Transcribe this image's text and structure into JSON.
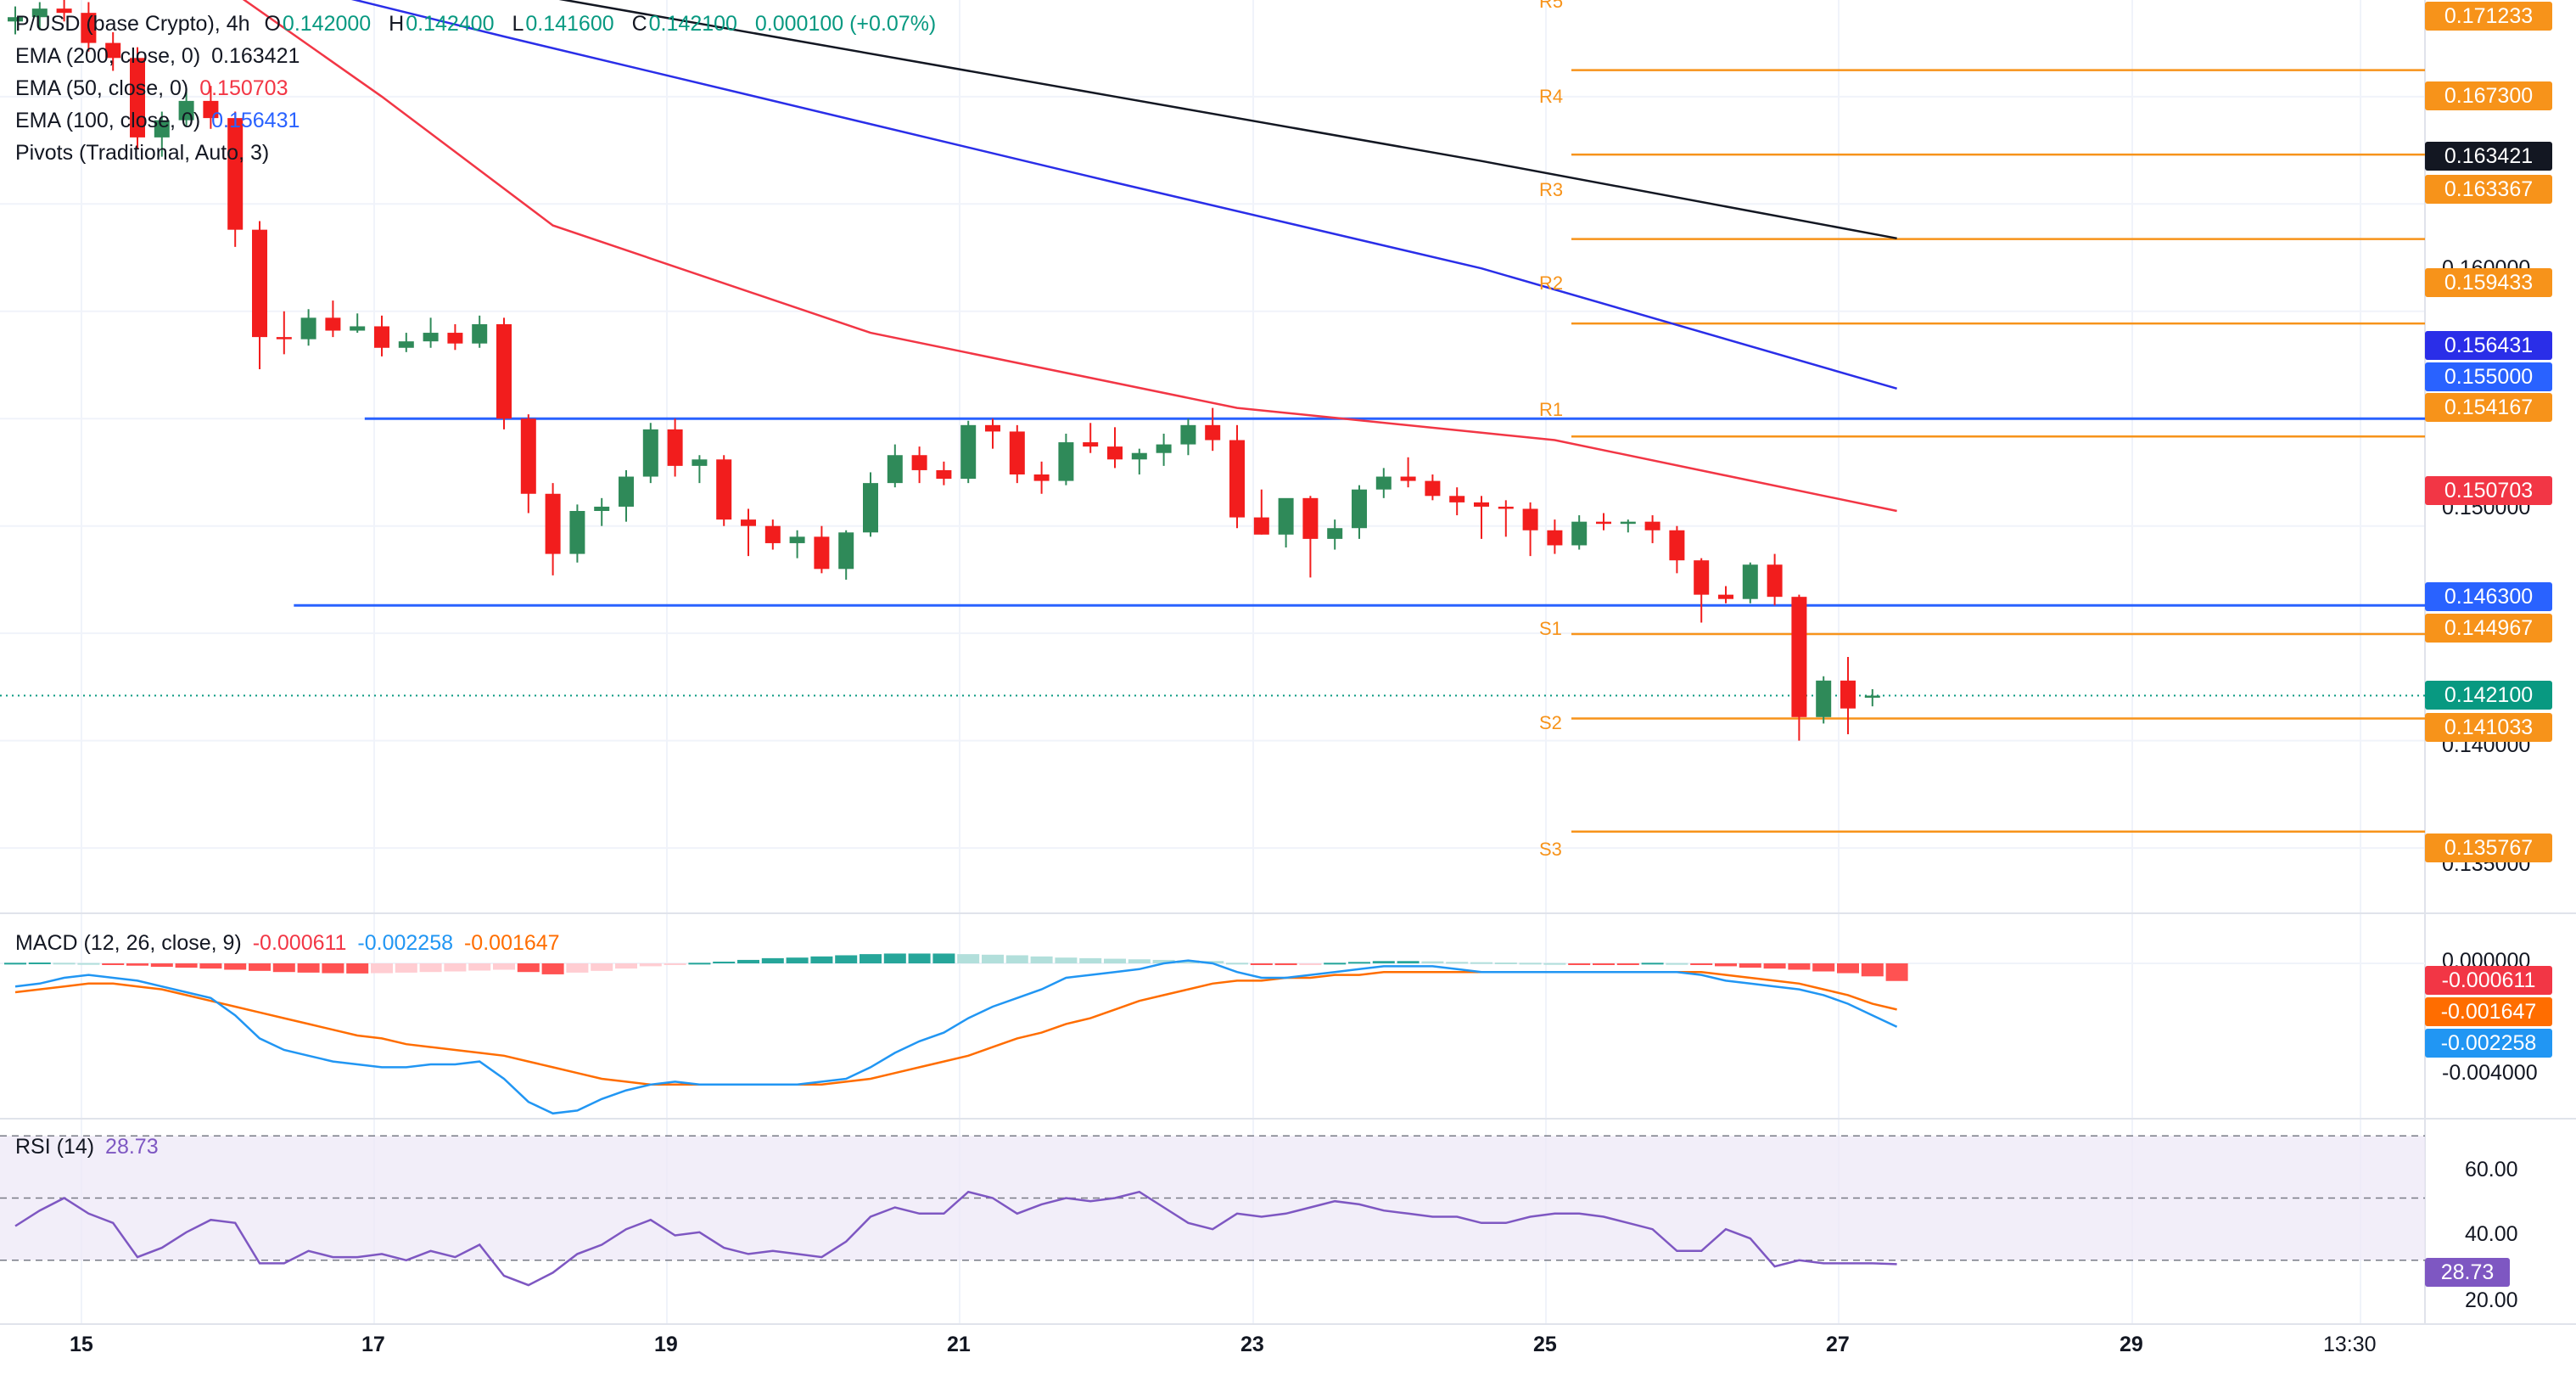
{
  "header": {
    "symbol": "P/USD (base Crypto)",
    "interval": "4h",
    "ohlc": [
      {
        "k": "O",
        "v": "0.142000"
      },
      {
        "k": "H",
        "v": "0.142400"
      },
      {
        "k": "L",
        "v": "0.141600"
      },
      {
        "k": "C",
        "v": "0.142100"
      }
    ],
    "change": "0.000100 (+0.07%)"
  },
  "indicators": [
    {
      "label": "EMA (200, close, 0)",
      "value": "0.163421",
      "color": "#131722"
    },
    {
      "label": "EMA (50, close, 0)",
      "value": "0.150703",
      "color": "#f23645"
    },
    {
      "label": "EMA (100, close, 0)",
      "value": "0.156431",
      "color": "#2962ff"
    },
    {
      "label": "Pivots (Traditional, Auto, 3)",
      "value": "",
      "color": "#131722"
    }
  ],
  "pivots": [
    {
      "name": "R5",
      "value": "0.171233"
    },
    {
      "name": "R4",
      "value": "0.167300"
    },
    {
      "name": "R3",
      "value": "0.163367"
    },
    {
      "name": "R2",
      "value": "0.159433"
    },
    {
      "name": "R1",
      "value": "0.154167"
    },
    {
      "name": "S1",
      "value": "0.144967"
    },
    {
      "name": "S2",
      "value": "0.141033"
    },
    {
      "name": "S3",
      "value": "0.135767"
    }
  ],
  "price_tags": [
    {
      "value": "0.163421",
      "color": "#131722"
    },
    {
      "value": "0.156431",
      "color": "#2a2ee8"
    },
    {
      "value": "0.155000",
      "color": "#2962ff"
    },
    {
      "value": "0.150703",
      "color": "#f23645"
    },
    {
      "value": "0.146300",
      "color": "#2962ff"
    },
    {
      "value": "0.142100",
      "color": "#089981"
    }
  ],
  "price_axis": [
    "0.160000",
    "0.150000",
    "0.140000",
    "0.135000"
  ],
  "macd": {
    "label": "MACD (12, 26, close, 9)",
    "hist": "-0.000611",
    "macd": "-0.002258",
    "signal": "-0.001647",
    "axis": [
      "0.000000",
      "-0.004000"
    ],
    "colors": {
      "hist": "#f23645",
      "macd": "#2196f3",
      "signal": "#ff6d00"
    }
  },
  "rsi": {
    "label": "RSI (14)",
    "value": "28.73",
    "axis": [
      "60.00",
      "40.00",
      "20.00"
    ],
    "color": "#7e57c2"
  },
  "time_axis": [
    "15",
    "17",
    "19",
    "21",
    "23",
    "25",
    "27",
    "29",
    "13:30"
  ],
  "chart_data": {
    "type": "candlestick",
    "interval": "4h",
    "candles_ohlc": [
      [
        0.1735,
        0.1742,
        0.1729,
        0.1737
      ],
      [
        0.1737,
        0.1744,
        0.1731,
        0.1741
      ],
      [
        0.1741,
        0.1746,
        0.1735,
        0.1739
      ],
      [
        0.1739,
        0.1744,
        0.1721,
        0.1725
      ],
      [
        0.1725,
        0.173,
        0.1712,
        0.1718
      ],
      [
        0.1718,
        0.1723,
        0.1676,
        0.1681
      ],
      [
        0.1681,
        0.1693,
        0.1672,
        0.1689
      ],
      [
        0.1689,
        0.1704,
        0.1686,
        0.1698
      ],
      [
        0.1698,
        0.1705,
        0.1685,
        0.169
      ],
      [
        0.169,
        0.1693,
        0.163,
        0.1638
      ],
      [
        0.1638,
        0.1642,
        0.1573,
        0.1588
      ],
      [
        0.1588,
        0.16,
        0.158,
        0.1587
      ],
      [
        0.1587,
        0.1601,
        0.1584,
        0.1597
      ],
      [
        0.1597,
        0.1605,
        0.1588,
        0.1591
      ],
      [
        0.1591,
        0.1599,
        0.159,
        0.1593
      ],
      [
        0.1593,
        0.1598,
        0.1579,
        0.1583
      ],
      [
        0.1583,
        0.159,
        0.1581,
        0.1586
      ],
      [
        0.1586,
        0.1597,
        0.1583,
        0.159
      ],
      [
        0.159,
        0.1594,
        0.1582,
        0.1585
      ],
      [
        0.1585,
        0.1598,
        0.1583,
        0.1594
      ],
      [
        0.1594,
        0.1597,
        0.1545,
        0.155
      ],
      [
        0.155,
        0.1552,
        0.1506,
        0.1515
      ],
      [
        0.1515,
        0.152,
        0.1477,
        0.1487
      ],
      [
        0.1487,
        0.151,
        0.1483,
        0.1507
      ],
      [
        0.1507,
        0.1513,
        0.15,
        0.1509
      ],
      [
        0.1509,
        0.1526,
        0.1502,
        0.1523
      ],
      [
        0.1523,
        0.1548,
        0.152,
        0.1545
      ],
      [
        0.1545,
        0.155,
        0.1523,
        0.1528
      ],
      [
        0.1528,
        0.1533,
        0.152,
        0.1531
      ],
      [
        0.1531,
        0.1533,
        0.15,
        0.1503
      ],
      [
        0.1503,
        0.1508,
        0.1486,
        0.15
      ],
      [
        0.15,
        0.1503,
        0.1489,
        0.1492
      ],
      [
        0.1492,
        0.1498,
        0.1485,
        0.1495
      ],
      [
        0.1495,
        0.15,
        0.1478,
        0.148
      ],
      [
        0.148,
        0.1498,
        0.1475,
        0.1497
      ],
      [
        0.1497,
        0.1525,
        0.1495,
        0.152
      ],
      [
        0.152,
        0.1538,
        0.1518,
        0.1533
      ],
      [
        0.1533,
        0.1537,
        0.152,
        0.1526
      ],
      [
        0.1526,
        0.153,
        0.1519,
        0.1522
      ],
      [
        0.1522,
        0.1549,
        0.152,
        0.1547
      ],
      [
        0.1547,
        0.155,
        0.1536,
        0.1544
      ],
      [
        0.1544,
        0.1547,
        0.152,
        0.1524
      ],
      [
        0.1524,
        0.153,
        0.1515,
        0.1521
      ],
      [
        0.1521,
        0.1543,
        0.1519,
        0.1539
      ],
      [
        0.1539,
        0.1548,
        0.1534,
        0.1537
      ],
      [
        0.1537,
        0.1546,
        0.1527,
        0.1531
      ],
      [
        0.1531,
        0.1536,
        0.1524,
        0.1534
      ],
      [
        0.1534,
        0.1543,
        0.1528,
        0.1538
      ],
      [
        0.1538,
        0.155,
        0.1533,
        0.1547
      ],
      [
        0.1547,
        0.1555,
        0.1535,
        0.154
      ],
      [
        0.154,
        0.1547,
        0.1499,
        0.1504
      ],
      [
        0.1504,
        0.1517,
        0.1496,
        0.1496
      ],
      [
        0.1496,
        0.1512,
        0.149,
        0.1513
      ],
      [
        0.1513,
        0.1514,
        0.1476,
        0.1494
      ],
      [
        0.1494,
        0.1503,
        0.1489,
        0.1499
      ],
      [
        0.1499,
        0.1519,
        0.1494,
        0.1517
      ],
      [
        0.1517,
        0.1527,
        0.1513,
        0.1523
      ],
      [
        0.1523,
        0.1532,
        0.1518,
        0.1521
      ],
      [
        0.1521,
        0.1524,
        0.1512,
        0.1514
      ],
      [
        0.1514,
        0.1518,
        0.1505,
        0.1511
      ],
      [
        0.1511,
        0.1514,
        0.1494,
        0.1509
      ],
      [
        0.1509,
        0.1512,
        0.1495,
        0.1508
      ],
      [
        0.1508,
        0.1511,
        0.1486,
        0.1498
      ],
      [
        0.1498,
        0.1503,
        0.1487,
        0.1491
      ],
      [
        0.1491,
        0.1505,
        0.1489,
        0.1502
      ],
      [
        0.1502,
        0.1506,
        0.1498,
        0.1501
      ],
      [
        0.1501,
        0.1503,
        0.1497,
        0.1502
      ],
      [
        0.1502,
        0.1505,
        0.1492,
        0.1498
      ],
      [
        0.1498,
        0.15,
        0.1478,
        0.1484
      ],
      [
        0.1484,
        0.1485,
        0.1455,
        0.1468
      ],
      [
        0.1468,
        0.1472,
        0.1464,
        0.1466
      ],
      [
        0.1466,
        0.1483,
        0.1464,
        0.1482
      ],
      [
        0.1482,
        0.1487,
        0.1463,
        0.1467
      ],
      [
        0.1467,
        0.1468,
        0.14,
        0.1411
      ],
      [
        0.1411,
        0.143,
        0.1408,
        0.1428
      ],
      [
        0.1428,
        0.1439,
        0.1403,
        0.1415
      ],
      [
        0.142,
        0.1424,
        0.1416,
        0.1421
      ]
    ],
    "ema200": [
      [
        0,
        0.18
      ],
      [
        5,
        0.178
      ],
      [
        20,
        0.175
      ],
      [
        45,
        0.17
      ],
      [
        60,
        0.167
      ],
      [
        77,
        0.1634
      ]
    ],
    "ema100": [
      [
        0,
        0.179
      ],
      [
        5,
        0.177
      ],
      [
        20,
        0.1728
      ],
      [
        45,
        0.166
      ],
      [
        60,
        0.162
      ],
      [
        77,
        0.1564
      ]
    ],
    "ema50": [
      [
        5,
        0.178
      ],
      [
        15,
        0.17
      ],
      [
        22,
        0.164
      ],
      [
        35,
        0.159
      ],
      [
        50,
        0.1555
      ],
      [
        63,
        0.154
      ],
      [
        77,
        0.1507
      ]
    ],
    "range_top": 0.155,
    "range_bottom": 0.1463,
    "macd_hist": [
      2e-05,
      3e-05,
      2e-05,
      1e-05,
      -5e-05,
      -8e-05,
      -0.00012,
      -0.00015,
      -0.00018,
      -0.00022,
      -0.00026,
      -0.0003,
      -0.00032,
      -0.00034,
      -0.00035,
      -0.00034,
      -0.00032,
      -0.0003,
      -0.00028,
      -0.00025,
      -0.00022,
      -0.0003,
      -0.00038,
      -0.00032,
      -0.00026,
      -0.00018,
      -0.0001,
      -4e-05,
      2e-05,
      6e-05,
      0.00012,
      0.00018,
      0.0002,
      0.00024,
      0.00028,
      0.00032,
      0.00034,
      0.00034,
      0.00034,
      0.00032,
      0.0003,
      0.00028,
      0.00024,
      0.0002,
      0.00018,
      0.00016,
      0.00014,
      0.00012,
      0.0001,
      8e-05,
      2e-05,
      -4e-05,
      -6e-05,
      -4e-05,
      2e-05,
      5e-05,
      8e-05,
      8e-05,
      7e-05,
      5e-05,
      4e-05,
      3e-05,
      2e-05,
      1e-05,
      -1e-05,
      -2e-05,
      -2e-05,
      2e-05,
      1e-05,
      -5e-05,
      -0.0001,
      -0.00015,
      -0.00018,
      -0.00022,
      -0.00028,
      -0.00034,
      -0.00045,
      -0.00061
    ],
    "macd_line": [
      -0.0008,
      -0.0007,
      -0.0005,
      -0.0004,
      -0.0005,
      -0.0006,
      -0.0008,
      -0.001,
      -0.0012,
      -0.0018,
      -0.0026,
      -0.003,
      -0.0032,
      -0.0034,
      -0.0035,
      -0.0036,
      -0.0036,
      -0.0035,
      -0.0035,
      -0.0034,
      -0.004,
      -0.0048,
      -0.0052,
      -0.0051,
      -0.0047,
      -0.0044,
      -0.0042,
      -0.0041,
      -0.0042,
      -0.0042,
      -0.0042,
      -0.0042,
      -0.0042,
      -0.0041,
      -0.004,
      -0.0036,
      -0.0031,
      -0.0027,
      -0.0024,
      -0.0019,
      -0.0015,
      -0.0012,
      -0.0009,
      -0.0005,
      -0.0004,
      -0.0003,
      -0.0002,
      0.0,
      0.0001,
      0.0,
      -0.0003,
      -0.0005,
      -0.0005,
      -0.0004,
      -0.0003,
      -0.0002,
      -0.0001,
      -0.0001,
      -0.0001,
      -0.0002,
      -0.0003,
      -0.0003,
      -0.0003,
      -0.0003,
      -0.0003,
      -0.0003,
      -0.0003,
      -0.0003,
      -0.0003,
      -0.0004,
      -0.0006,
      -0.0007,
      -0.0008,
      -0.0009,
      -0.0011,
      -0.0014,
      -0.0018,
      -0.0022
    ],
    "macd_signal": [
      -0.001,
      -0.0009,
      -0.0008,
      -0.0007,
      -0.0007,
      -0.0008,
      -0.0009,
      -0.0011,
      -0.0013,
      -0.0015,
      -0.0017,
      -0.0019,
      -0.0021,
      -0.0023,
      -0.0025,
      -0.0026,
      -0.0028,
      -0.0029,
      -0.003,
      -0.0031,
      -0.0032,
      -0.0034,
      -0.0036,
      -0.0038,
      -0.004,
      -0.0041,
      -0.0042,
      -0.0042,
      -0.0042,
      -0.0042,
      -0.0042,
      -0.0042,
      -0.0042,
      -0.0042,
      -0.0041,
      -0.004,
      -0.0038,
      -0.0036,
      -0.0034,
      -0.0032,
      -0.0029,
      -0.0026,
      -0.0024,
      -0.0021,
      -0.0019,
      -0.0016,
      -0.0013,
      -0.0011,
      -0.0009,
      -0.0007,
      -0.0006,
      -0.0006,
      -0.0005,
      -0.0005,
      -0.0004,
      -0.0004,
      -0.0003,
      -0.0003,
      -0.0003,
      -0.0003,
      -0.0003,
      -0.0003,
      -0.0003,
      -0.0003,
      -0.0003,
      -0.0003,
      -0.0003,
      -0.0003,
      -0.0003,
      -0.0003,
      -0.0004,
      -0.0005,
      -0.0006,
      -0.0007,
      -0.0009,
      -0.0011,
      -0.0014,
      -0.0016
    ],
    "rsi_values": [
      41,
      46,
      50,
      45,
      42,
      31,
      34,
      39,
      43,
      42,
      29,
      29,
      33,
      31,
      31,
      32,
      30,
      33,
      31,
      35,
      25,
      22,
      26,
      32,
      35,
      40,
      43,
      38,
      39,
      34,
      32,
      33,
      32,
      31,
      36,
      44,
      47,
      45,
      45,
      52,
      50,
      45,
      48,
      50,
      49,
      50,
      52,
      47,
      42,
      40,
      45,
      44,
      45,
      47,
      49,
      48,
      46,
      45,
      44,
      44,
      42,
      42,
      44,
      45,
      45,
      44,
      42,
      40,
      33,
      33,
      40,
      37,
      28,
      30,
      29,
      29,
      29,
      28.73
    ],
    "pivot_levels": {
      "R5": 0.171233,
      "R4": 0.1673,
      "R3": 0.163367,
      "R2": 0.159433,
      "R1": 0.154167,
      "S1": 0.144967,
      "S2": 0.141033,
      "S3": 0.135767
    },
    "price_range": [
      0.132,
      0.1745
    ],
    "rsi_range": [
      10,
      75
    ]
  }
}
